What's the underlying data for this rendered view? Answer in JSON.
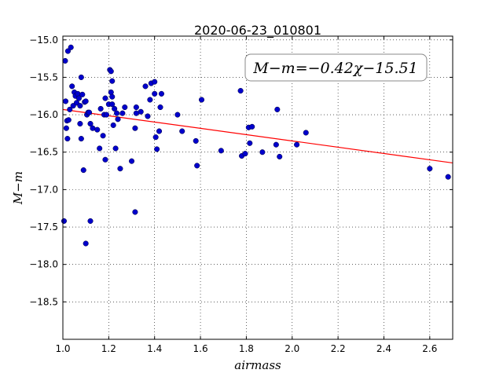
{
  "chart_data": {
    "type": "scatter",
    "title": "2020-06-23_010801",
    "xlabel": "airmass",
    "ylabel": "M−m",
    "xlim": [
      1.0,
      2.7
    ],
    "ylim": [
      -19.0,
      -14.95
    ],
    "y_inverted": true,
    "grid": true,
    "x_ticks": [
      1.0,
      1.2,
      1.4,
      1.6,
      1.8,
      2.0,
      2.2,
      2.4,
      2.6
    ],
    "x_tick_labels": [
      "1.0",
      "1.2",
      "1.4",
      "1.6",
      "1.8",
      "2.0",
      "2.2",
      "2.4",
      "2.6"
    ],
    "y_ticks": [
      -15.0,
      -15.5,
      -16.0,
      -16.5,
      -17.0,
      -17.5,
      -18.0,
      -18.5
    ],
    "y_tick_labels": [
      "−15.0",
      "−15.5",
      "−16.0",
      "−16.5",
      "−17.0",
      "−17.5",
      "−18.0",
      "−18.5"
    ],
    "annotation": "M−m=−0.42χ−15.51",
    "annotation_position": "top-right",
    "fit": {
      "slope": -0.42,
      "intercept": -15.51,
      "x_range": [
        1.0,
        2.7
      ],
      "color": "#ff0000"
    },
    "point_color": "#0000cc",
    "points": [
      [
        1.005,
        -17.42
      ],
      [
        1.01,
        -15.28
      ],
      [
        1.012,
        -15.82
      ],
      [
        1.015,
        -16.18
      ],
      [
        1.018,
        -16.08
      ],
      [
        1.02,
        -16.32
      ],
      [
        1.022,
        -15.15
      ],
      [
        1.025,
        -16.07
      ],
      [
        1.03,
        -15.93
      ],
      [
        1.035,
        -15.1
      ],
      [
        1.04,
        -15.62
      ],
      [
        1.045,
        -15.88
      ],
      [
        1.05,
        -15.7
      ],
      [
        1.055,
        -15.75
      ],
      [
        1.06,
        -15.84
      ],
      [
        1.065,
        -15.72
      ],
      [
        1.07,
        -15.78
      ],
      [
        1.075,
        -16.12
      ],
      [
        1.075,
        -15.88
      ],
      [
        1.08,
        -15.5
      ],
      [
        1.08,
        -16.32
      ],
      [
        1.085,
        -15.73
      ],
      [
        1.09,
        -16.74
      ],
      [
        1.095,
        -15.83
      ],
      [
        1.1,
        -17.72
      ],
      [
        1.1,
        -15.82
      ],
      [
        1.105,
        -16.0
      ],
      [
        1.11,
        -15.97
      ],
      [
        1.115,
        -15.97
      ],
      [
        1.12,
        -17.42
      ],
      [
        1.12,
        -16.12
      ],
      [
        1.13,
        -16.18
      ],
      [
        1.15,
        -16.2
      ],
      [
        1.16,
        -16.45
      ],
      [
        1.165,
        -15.92
      ],
      [
        1.175,
        -16.28
      ],
      [
        1.18,
        -16.0
      ],
      [
        1.185,
        -15.78
      ],
      [
        1.185,
        -16.6
      ],
      [
        1.19,
        -16.0
      ],
      [
        1.2,
        -15.86
      ],
      [
        1.205,
        -15.4
      ],
      [
        1.21,
        -15.42
      ],
      [
        1.21,
        -15.7
      ],
      [
        1.215,
        -15.55
      ],
      [
        1.215,
        -15.76
      ],
      [
        1.215,
        -15.86
      ],
      [
        1.22,
        -16.14
      ],
      [
        1.225,
        -15.92
      ],
      [
        1.23,
        -16.45
      ],
      [
        1.235,
        -15.98
      ],
      [
        1.24,
        -16.06
      ],
      [
        1.25,
        -16.72
      ],
      [
        1.26,
        -15.98
      ],
      [
        1.27,
        -15.9
      ],
      [
        1.3,
        -16.62
      ],
      [
        1.315,
        -16.18
      ],
      [
        1.315,
        -17.3
      ],
      [
        1.32,
        -15.98
      ],
      [
        1.32,
        -15.9
      ],
      [
        1.34,
        -15.96
      ],
      [
        1.36,
        -15.62
      ],
      [
        1.37,
        -16.02
      ],
      [
        1.38,
        -15.8
      ],
      [
        1.385,
        -15.58
      ],
      [
        1.4,
        -15.56
      ],
      [
        1.4,
        -15.72
      ],
      [
        1.405,
        -16.3
      ],
      [
        1.41,
        -16.46
      ],
      [
        1.42,
        -16.22
      ],
      [
        1.425,
        -15.9
      ],
      [
        1.43,
        -15.72
      ],
      [
        1.5,
        -16.0
      ],
      [
        1.52,
        -16.22
      ],
      [
        1.58,
        -16.35
      ],
      [
        1.585,
        -16.68
      ],
      [
        1.605,
        -15.8
      ],
      [
        1.69,
        -16.48
      ],
      [
        1.775,
        -15.68
      ],
      [
        1.78,
        -16.55
      ],
      [
        1.795,
        -16.52
      ],
      [
        1.81,
        -16.17
      ],
      [
        1.815,
        -16.38
      ],
      [
        1.825,
        -16.16
      ],
      [
        1.87,
        -16.5
      ],
      [
        1.93,
        -16.4
      ],
      [
        1.935,
        -15.93
      ],
      [
        1.945,
        -16.56
      ],
      [
        2.02,
        -16.4
      ],
      [
        2.06,
        -16.24
      ],
      [
        2.6,
        -16.72
      ],
      [
        2.68,
        -16.83
      ]
    ]
  }
}
